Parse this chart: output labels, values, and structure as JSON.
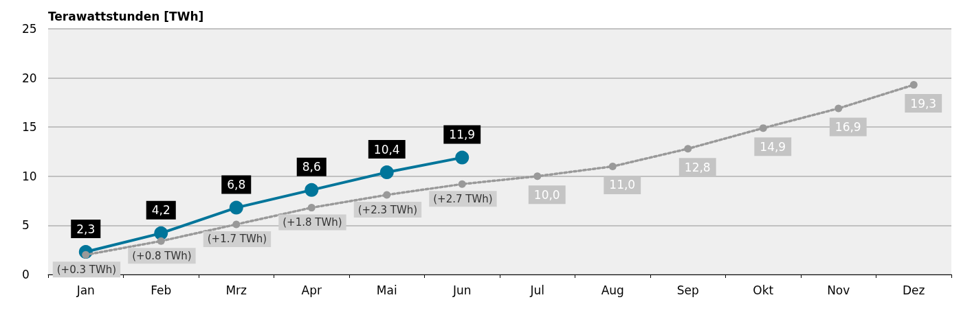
{
  "chart_data": {
    "type": "line",
    "ylabel": "Terawattstunden [TWh]",
    "categories": [
      "Jan",
      "Feb",
      "Mrz",
      "Apr",
      "Mai",
      "Jun",
      "Jul",
      "Aug",
      "Sep",
      "Okt",
      "Nov",
      "Dez"
    ],
    "series": [
      {
        "color": "#999999",
        "line_style": "dotted",
        "values": [
          2.0,
          3.4,
          5.1,
          6.8,
          8.1,
          9.2,
          10.0,
          11.0,
          12.8,
          14.9,
          16.9,
          19.3
        ],
        "value_labels": [
          null,
          null,
          null,
          null,
          null,
          null,
          "10,0",
          "11,0",
          "12,8",
          "14,9",
          "16,9",
          "19,3"
        ]
      },
      {
        "color": "#00759a",
        "line_style": "solid",
        "values": [
          2.3,
          4.2,
          6.8,
          8.6,
          10.4,
          11.9,
          null,
          null,
          null,
          null,
          null,
          null
        ],
        "value_labels": [
          "2,3",
          "4,2",
          "6,8",
          "8,6",
          "10,4",
          "11,9",
          null,
          null,
          null,
          null,
          null,
          null
        ]
      }
    ],
    "annotations": [
      {
        "text": "(+0.3 TWh)",
        "x": "Jan",
        "y": 2.0
      },
      {
        "text": "(+0.8 TWh)",
        "x": "Feb",
        "y": 3.4
      },
      {
        "text": "(+1.7 TWh)",
        "x": "Mrz",
        "y": 5.1
      },
      {
        "text": "(+1.8 TWh)",
        "x": "Apr",
        "y": 6.8
      },
      {
        "text": "(+2.3 TWh)",
        "x": "Mai",
        "y": 8.1
      },
      {
        "text": "(+2.7 TWh)",
        "x": "Jun",
        "y": 9.2
      }
    ],
    "ylim": [
      0,
      25
    ],
    "yticks": [
      0,
      5,
      10,
      15,
      20,
      25
    ],
    "grid": "y",
    "marker": "circle"
  }
}
